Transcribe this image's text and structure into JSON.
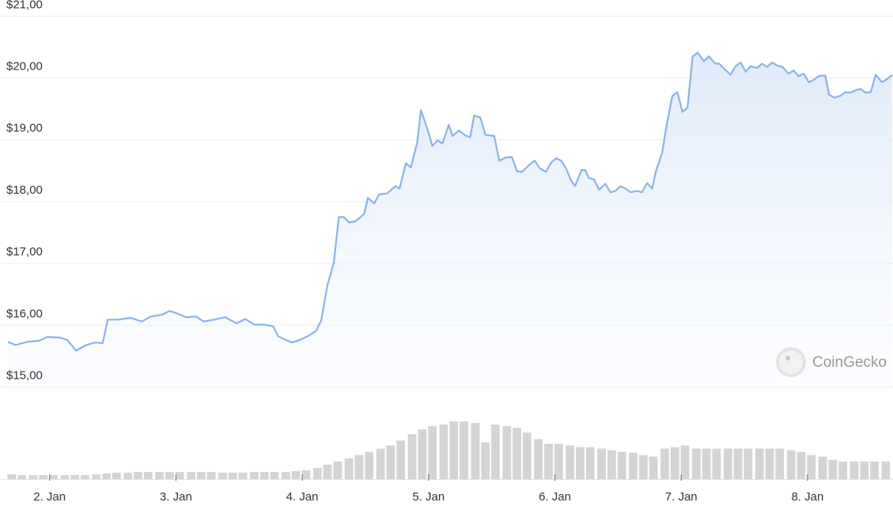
{
  "chart_data": {
    "type": "line",
    "series": [
      {
        "color": "#8ab3e6",
        "x": [
          1.67,
          1.73,
          1.82,
          1.92,
          1.98,
          2.08,
          2.14,
          2.21,
          2.29,
          2.36,
          2.42,
          2.46,
          2.54,
          2.64,
          2.73,
          2.8,
          2.89,
          2.95,
          3.01,
          3.08,
          3.16,
          3.22,
          3.3,
          3.39,
          3.48,
          3.55,
          3.62,
          3.7,
          3.77,
          3.81,
          3.86,
          3.92,
          3.98,
          4.05,
          4.11,
          4.15,
          4.2,
          4.25,
          4.29,
          4.33,
          4.37,
          4.42,
          4.49,
          4.52,
          4.57,
          4.61,
          4.67,
          4.74,
          4.77,
          4.82,
          4.86,
          4.91,
          4.94,
          4.99,
          5.03,
          5.07,
          5.11,
          5.16,
          5.19,
          5.24,
          5.29,
          5.33,
          5.36,
          5.41,
          5.45,
          5.52,
          5.56,
          5.61,
          5.66,
          5.7,
          5.74,
          5.8,
          5.84,
          5.88,
          5.93,
          5.97,
          6.01,
          6.05,
          6.09,
          6.13,
          6.16,
          6.21,
          6.24,
          6.27,
          6.31,
          6.35,
          6.4,
          6.44,
          6.48,
          6.52,
          6.56,
          6.6,
          6.65,
          6.69,
          6.73,
          6.77,
          6.8,
          6.85,
          6.88,
          6.93,
          6.97,
          7.01,
          7.05,
          7.09,
          7.13,
          7.18,
          7.22,
          7.27,
          7.3,
          7.35,
          7.39,
          7.43,
          7.47,
          7.51,
          7.55,
          7.6,
          7.64,
          7.68,
          7.72,
          7.76,
          7.8,
          7.85,
          7.89,
          7.93,
          7.97,
          8.01,
          8.05,
          8.09,
          8.14,
          8.17,
          8.21,
          8.26,
          8.3,
          8.34,
          8.38,
          8.42,
          8.46,
          8.5,
          8.54,
          8.59,
          8.63,
          8.67
        ],
        "values": [
          15.73,
          15.68,
          15.73,
          15.75,
          15.81,
          15.8,
          15.76,
          15.59,
          15.68,
          15.72,
          15.71,
          16.09,
          16.09,
          16.12,
          16.06,
          16.14,
          16.17,
          16.23,
          16.19,
          16.13,
          16.14,
          16.06,
          16.09,
          16.13,
          16.03,
          16.1,
          16.01,
          16.01,
          15.98,
          15.82,
          15.77,
          15.72,
          15.76,
          15.83,
          15.91,
          16.08,
          16.65,
          17.01,
          17.75,
          17.75,
          17.66,
          17.68,
          17.8,
          18.06,
          17.97,
          18.12,
          18.13,
          18.25,
          18.21,
          18.62,
          18.55,
          18.95,
          19.48,
          19.18,
          18.9,
          18.99,
          18.94,
          19.24,
          19.06,
          19.15,
          19.07,
          19.04,
          19.39,
          19.36,
          19.08,
          19.06,
          18.66,
          18.71,
          18.72,
          18.49,
          18.48,
          18.6,
          18.66,
          18.54,
          18.48,
          18.63,
          18.7,
          18.66,
          18.53,
          18.33,
          18.25,
          18.51,
          18.51,
          18.38,
          18.36,
          18.19,
          18.29,
          18.15,
          18.17,
          18.25,
          18.21,
          18.15,
          18.17,
          18.15,
          18.3,
          18.21,
          18.49,
          18.79,
          19.18,
          19.71,
          19.77,
          19.45,
          19.52,
          20.34,
          20.41,
          20.27,
          20.35,
          20.23,
          20.23,
          20.13,
          20.05,
          20.19,
          20.25,
          20.1,
          20.19,
          20.16,
          20.23,
          20.18,
          20.25,
          20.2,
          20.18,
          20.07,
          20.12,
          20.03,
          20.07,
          19.93,
          19.97,
          20.03,
          20.04,
          19.73,
          19.68,
          19.71,
          19.77,
          19.76,
          19.8,
          19.82,
          19.76,
          19.77,
          20.05,
          19.93,
          19.98,
          20.05
        ]
      }
    ],
    "volume": {
      "type": "bar",
      "color": "#d4d4d4",
      "x": [
        1.7,
        1.78,
        1.87,
        1.95,
        2.03,
        2.12,
        2.2,
        2.28,
        2.37,
        2.45,
        2.53,
        2.62,
        2.7,
        2.78,
        2.87,
        2.95,
        3.03,
        3.12,
        3.2,
        3.28,
        3.37,
        3.45,
        3.53,
        3.62,
        3.7,
        3.78,
        3.87,
        3.95,
        4.03,
        4.12,
        4.2,
        4.28,
        4.37,
        4.45,
        4.53,
        4.62,
        4.7,
        4.78,
        4.87,
        4.95,
        5.03,
        5.12,
        5.2,
        5.28,
        5.37,
        5.45,
        5.53,
        5.62,
        5.7,
        5.78,
        5.87,
        5.95,
        6.03,
        6.12,
        6.2,
        6.28,
        6.37,
        6.45,
        6.53,
        6.62,
        6.7,
        6.78,
        6.87,
        6.95,
        7.03,
        7.12,
        7.2,
        7.28,
        7.37,
        7.45,
        7.53,
        7.62,
        7.7,
        7.78,
        7.87,
        7.95,
        8.03,
        8.12,
        8.2,
        8.28,
        8.37,
        8.45,
        8.53,
        8.62
      ],
      "values": [
        6,
        5,
        5,
        5,
        5,
        5,
        5,
        5,
        6,
        7,
        8,
        8,
        9,
        9,
        9,
        9,
        9,
        9,
        9,
        9,
        8,
        8,
        8,
        9,
        9,
        9,
        9,
        10,
        11,
        14,
        18,
        22,
        26,
        30,
        34,
        38,
        42,
        48,
        56,
        62,
        66,
        68,
        72,
        72,
        70,
        46,
        68,
        66,
        64,
        58,
        50,
        44,
        44,
        42,
        40,
        40,
        38,
        36,
        34,
        33,
        30,
        28,
        38,
        40,
        42,
        38,
        38,
        38,
        38,
        38,
        38,
        38,
        38,
        38,
        36,
        34,
        30,
        28,
        24,
        22,
        22,
        22,
        22,
        22
      ]
    },
    "xlim": [
      1.67,
      8.68
    ],
    "ylim": [
      14.92,
      21.26
    ],
    "yticks": [
      {
        "value": 21,
        "label": "$21,00"
      },
      {
        "value": 20,
        "label": "$20,00"
      },
      {
        "value": 19,
        "label": "$19,00"
      },
      {
        "value": 18,
        "label": "$18,00"
      },
      {
        "value": 17,
        "label": "$17,00"
      },
      {
        "value": 16,
        "label": "$16,00"
      },
      {
        "value": 15,
        "label": "$15,00"
      }
    ],
    "xticks": [
      {
        "value": 2,
        "label": "2. Jan"
      },
      {
        "value": 3,
        "label": "3. Jan"
      },
      {
        "value": 4,
        "label": "4. Jan"
      },
      {
        "value": 5,
        "label": "5. Jan"
      },
      {
        "value": 6,
        "label": "6. Jan"
      },
      {
        "value": 7,
        "label": "7. Jan"
      },
      {
        "value": 8,
        "label": "8. Jan"
      }
    ],
    "grid": true,
    "watermark": "CoinGecko"
  }
}
